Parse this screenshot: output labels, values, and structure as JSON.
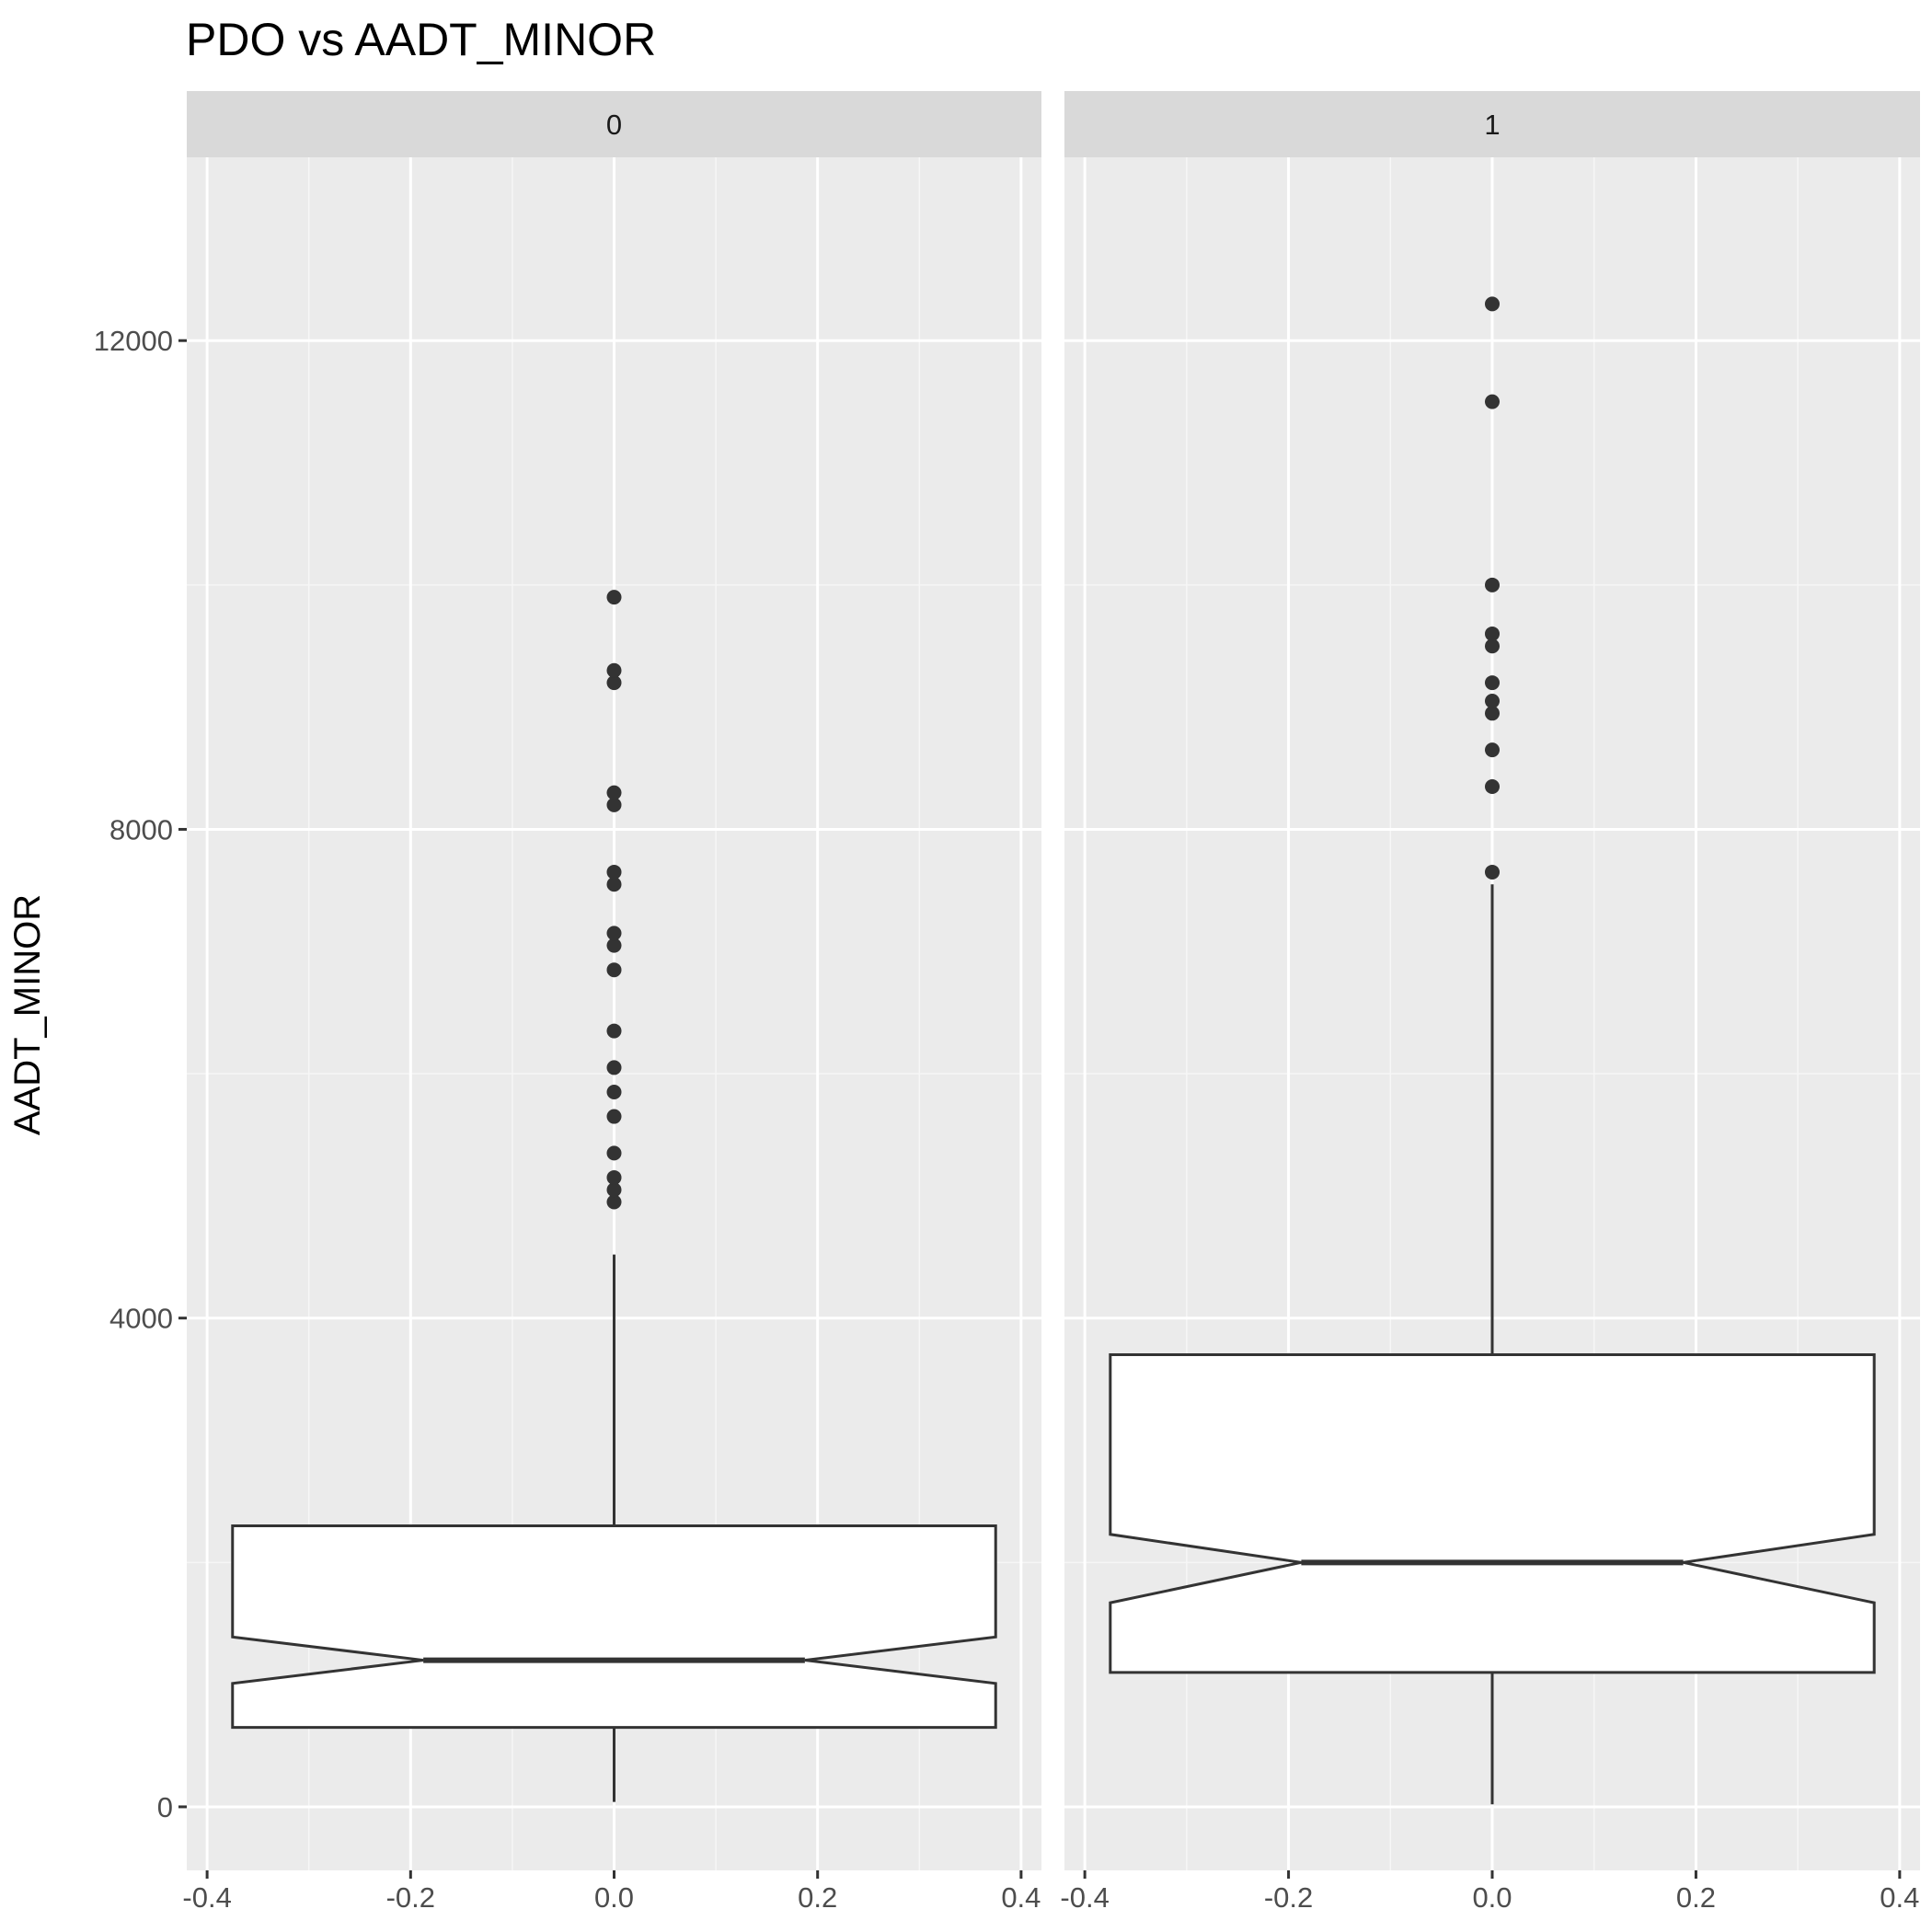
{
  "chart_data": {
    "type": "boxplot",
    "title": "PDO vs AADT_MINOR",
    "xlabel": "",
    "ylabel": "AADT_MINOR",
    "xlim": [
      -0.42,
      0.42
    ],
    "ylim": [
      -520,
      13500
    ],
    "x_ticks": [
      -0.4,
      -0.2,
      0.0,
      0.2,
      0.4
    ],
    "x_tick_labels": [
      "-0.4",
      "-0.2",
      "0.0",
      "0.2",
      "0.4"
    ],
    "y_ticks": [
      0,
      4000,
      8000,
      12000
    ],
    "y_tick_labels": [
      "0",
      "4000",
      "8000",
      "12000"
    ],
    "y_minor_ticks": [
      2000,
      6000,
      10000
    ],
    "x_minor_ticks": [
      -0.3,
      -0.1,
      0.1,
      0.3
    ],
    "grid": true,
    "notched": true,
    "panels": [
      {
        "facet_label": "0",
        "box": {
          "min": 40,
          "q1": 650,
          "median": 1200,
          "q3": 2300,
          "max": 4520,
          "notch_lower": 1010,
          "notch_upper": 1390,
          "x_center": 0.0,
          "half_width": 0.375
        },
        "outliers": [
          4950,
          5050,
          5150,
          5350,
          5650,
          5850,
          6050,
          6350,
          6850,
          7050,
          7150,
          7550,
          7650,
          8200,
          8300,
          9200,
          9300,
          9900
        ]
      },
      {
        "facet_label": "1",
        "box": {
          "min": 20,
          "q1": 1100,
          "median": 2000,
          "q3": 3700,
          "max": 7550,
          "notch_lower": 1670,
          "notch_upper": 2230,
          "x_center": 0.0,
          "half_width": 0.375
        },
        "outliers": [
          7650,
          8350,
          8650,
          8950,
          9050,
          9200,
          9500,
          9600,
          10000,
          11500,
          12300
        ]
      }
    ]
  },
  "colors": {
    "panel_background": "#ebebeb",
    "strip_background": "#d9d9d9",
    "grid_major": "#ffffff",
    "grid_minor": "#f6f6f6",
    "box_fill": "#ffffff",
    "box_stroke": "#333333",
    "outlier_fill": "#333333",
    "tick_color": "#333333"
  }
}
